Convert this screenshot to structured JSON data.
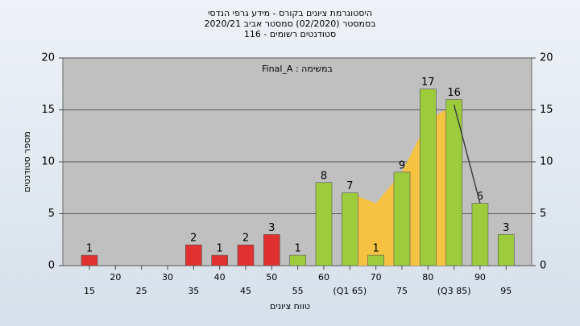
{
  "chart_data": {
    "type": "bar",
    "title": "היסטוגרמת ציונים בקורס - מידע גרפי הנדסי",
    "subtitle": "בסמסטר  (02/2020)  סמסטר אביב  2020/21",
    "subtitle2": "סטודנטים רשומים - 116",
    "annotation": "Final_A : במשימה",
    "y_label": "מספר סטודנטים",
    "x_label": "טווח ציונים",
    "categories": [
      "15",
      "20",
      "25",
      "30",
      "35",
      "40",
      "45",
      "50",
      "55",
      "60",
      "(Q1 65)",
      "70",
      "75",
      "80",
      "(Q3 85)",
      "90",
      "95"
    ],
    "values": [
      1,
      0,
      0,
      0,
      2,
      1,
      2,
      3,
      1,
      8,
      7,
      1,
      9,
      17,
      16,
      6,
      3
    ],
    "colors": [
      "#e03030",
      "#e03030",
      "#e03030",
      "#e03030",
      "#e03030",
      "#e03030",
      "#e03030",
      "#e03030",
      "#9ccc3c",
      "#9ccc3c",
      "#9ccc3c",
      "#9ccc3c",
      "#9ccc3c",
      "#9ccc3c",
      "#9ccc3c",
      "#9ccc3c",
      "#9ccc3c"
    ],
    "area": {
      "color": "#f5c242",
      "values": [
        null,
        null,
        null,
        null,
        null,
        null,
        null,
        null,
        null,
        null,
        7,
        6,
        9,
        14,
        15.5,
        null,
        null
      ]
    },
    "line": {
      "color": "#404040",
      "values": [
        null,
        null,
        null,
        null,
        null,
        null,
        null,
        null,
        null,
        null,
        null,
        null,
        null,
        null,
        15.5,
        6,
        null
      ]
    },
    "ylim": [
      0,
      20
    ],
    "yticks": [
      0,
      5,
      10,
      15,
      20
    ],
    "grid": true
  }
}
